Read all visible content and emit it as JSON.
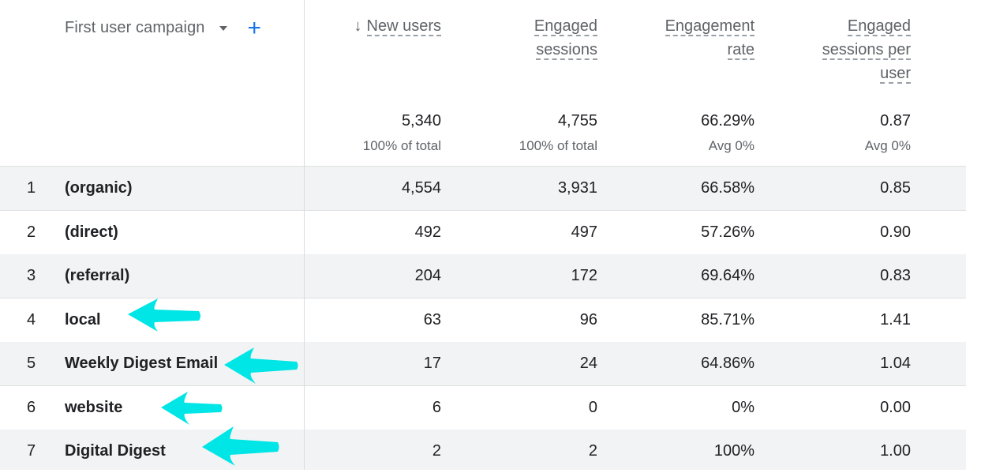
{
  "dimension": {
    "label": "First user campaign"
  },
  "colors": {
    "accent": "#1a73e8",
    "annotation": "#00e5e5"
  },
  "columns": [
    {
      "label_lines": [
        "New users"
      ],
      "sorted": true,
      "total": "5,340",
      "subtotal": "100% of total"
    },
    {
      "label_lines": [
        "Engaged",
        "sessions"
      ],
      "sorted": false,
      "total": "4,755",
      "subtotal": "100% of total"
    },
    {
      "label_lines": [
        "Engagement",
        "rate"
      ],
      "sorted": false,
      "total": "66.29%",
      "subtotal": "Avg 0%"
    },
    {
      "label_lines": [
        "Engaged",
        "sessions per",
        "user"
      ],
      "sorted": false,
      "total": "0.87",
      "subtotal": "Avg 0%"
    }
  ],
  "rows": [
    {
      "index": "1",
      "name": "(organic)",
      "values": [
        "4,554",
        "3,931",
        "66.58%",
        "0.85"
      ]
    },
    {
      "index": "2",
      "name": "(direct)",
      "values": [
        "492",
        "497",
        "57.26%",
        "0.90"
      ]
    },
    {
      "index": "3",
      "name": "(referral)",
      "values": [
        "204",
        "172",
        "69.64%",
        "0.83"
      ]
    },
    {
      "index": "4",
      "name": "local",
      "values": [
        "63",
        "96",
        "85.71%",
        "1.41"
      ]
    },
    {
      "index": "5",
      "name": "Weekly Digest Email",
      "values": [
        "17",
        "24",
        "64.86%",
        "1.04"
      ]
    },
    {
      "index": "6",
      "name": "website",
      "values": [
        "6",
        "0",
        "0%",
        "0.00"
      ]
    },
    {
      "index": "7",
      "name": "Digital Digest",
      "values": [
        "2",
        "2",
        "100%",
        "1.00"
      ]
    }
  ]
}
